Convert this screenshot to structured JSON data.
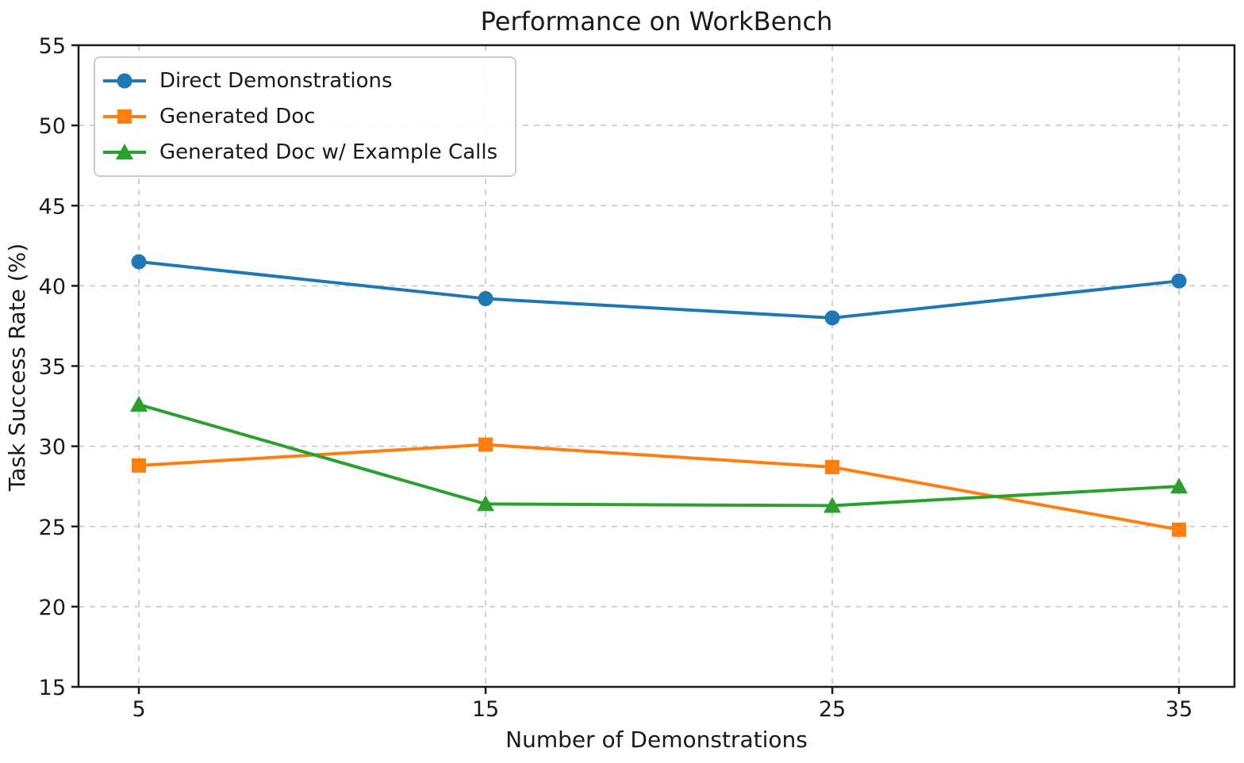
{
  "chart_data": {
    "type": "line",
    "title": "Performance on WorkBench",
    "xlabel": "Number of Demonstrations",
    "ylabel": "Task Success Rate (%)",
    "x": [
      5,
      15,
      25,
      35
    ],
    "series": [
      {
        "name": "Direct Demonstrations",
        "marker": "circle",
        "color": "#1f77b4",
        "values": [
          41.5,
          39.2,
          38.0,
          40.3
        ]
      },
      {
        "name": "Generated Doc",
        "marker": "square",
        "color": "#ff7f0e",
        "values": [
          28.8,
          30.1,
          28.7,
          24.8
        ]
      },
      {
        "name": "Generated Doc w/ Example Calls",
        "marker": "triangle",
        "color": "#2ca02c",
        "values": [
          32.6,
          26.4,
          26.3,
          27.5
        ]
      }
    ],
    "xticks": [
      5,
      15,
      25,
      35
    ],
    "yticks": [
      15,
      20,
      25,
      30,
      35,
      40,
      45,
      50,
      55
    ],
    "xlim": [
      3.26,
      36.6
    ],
    "ylim": [
      15,
      55
    ],
    "grid": true,
    "grid_style": "dashed",
    "grid_color": "#c4c4c4",
    "axis_color": "#1a1a1a",
    "legend_position": "upper-left"
  }
}
